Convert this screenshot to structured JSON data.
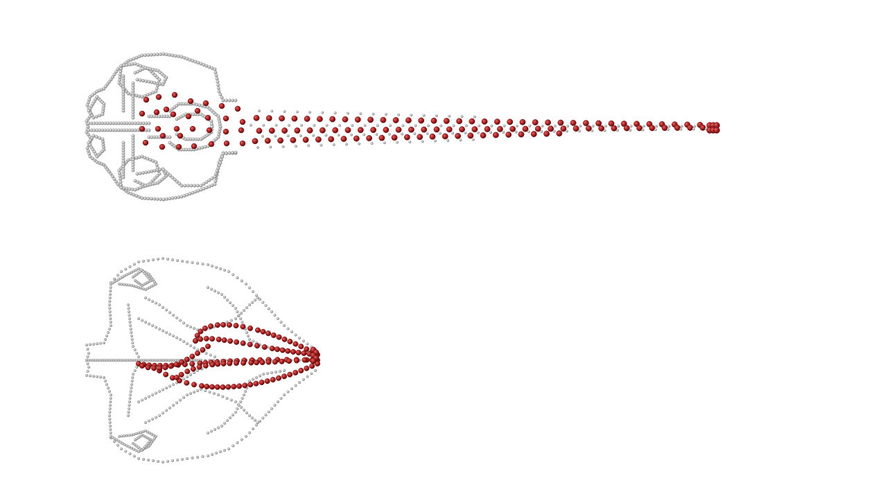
{
  "figure": {
    "panels": [
      {
        "id": "top",
        "description_name": "skull-dorsal-view-extended",
        "bead_count_tail_pairs": 36
      },
      {
        "id": "bottom",
        "description_name": "skull-dorsal-view-compact"
      }
    ],
    "colors": {
      "skeleton_bead": "#b9b9b9",
      "skeleton_bead_edge": "#8a8a8a",
      "highlight_bead": "#a52020",
      "highlight_bead_edge": "#6e1010",
      "background": "#ffffff"
    }
  }
}
